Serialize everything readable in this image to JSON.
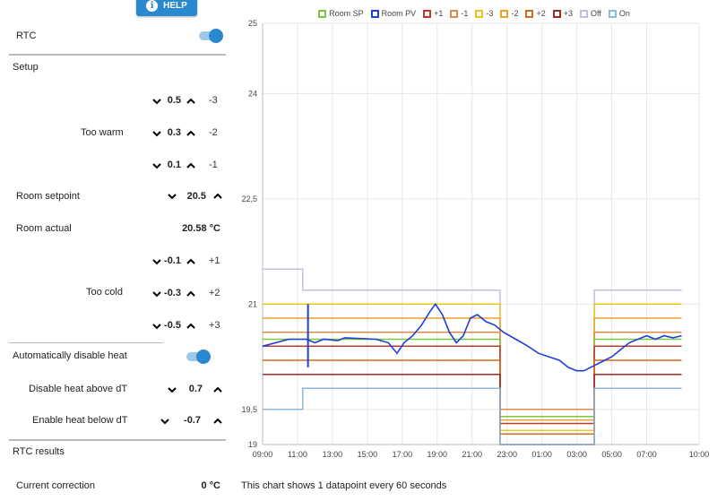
{
  "help": {
    "label": "HELP",
    "icon": "info-icon"
  },
  "rtc": {
    "label": "RTC",
    "enabled": true
  },
  "setup": {
    "heading": "Setup",
    "too_warm": {
      "label": "Too warm",
      "rows": [
        {
          "value": "0.5",
          "side": "-3"
        },
        {
          "value": "0.3",
          "side": "-2"
        },
        {
          "value": "0.1",
          "side": "-1"
        }
      ]
    },
    "room_setpoint": {
      "label": "Room setpoint",
      "value": "20.5"
    },
    "room_actual": {
      "label": "Room actual",
      "value": "20.58 °C"
    },
    "too_cold": {
      "label": "Too cold",
      "rows": [
        {
          "value": "-0.1",
          "side": "+1"
        },
        {
          "value": "-0.3",
          "side": "+2"
        },
        {
          "value": "-0.5",
          "side": "+3"
        }
      ]
    }
  },
  "auto_disable": {
    "label": "Automatically disable heat",
    "enabled": true
  },
  "disable_above": {
    "label": "Disable heat above dT",
    "value": "0.7"
  },
  "enable_below": {
    "label": "Enable heat below dT",
    "value": "-0.7"
  },
  "results": {
    "heading": "RTC results",
    "current_correction_label": "Current correction",
    "current_correction_value": "0 °C"
  },
  "footnote": "This chart shows 1 datapoint every 60 seconds",
  "chart_data": {
    "type": "line",
    "legend": [
      {
        "name": "Room SP",
        "color": "#7ac943"
      },
      {
        "name": "Room PV",
        "color": "#1f3fd6"
      },
      {
        "name": "+1",
        "color": "#c0392b"
      },
      {
        "name": "-1",
        "color": "#e08a4a"
      },
      {
        "name": "-3",
        "color": "#f0c419"
      },
      {
        "name": "-2",
        "color": "#f0a030"
      },
      {
        "name": "+2",
        "color": "#d46a1e"
      },
      {
        "name": "+3",
        "color": "#9e2a2a"
      },
      {
        "name": "Off",
        "color": "#c8bde0"
      },
      {
        "name": "On",
        "color": "#8fb8d8"
      }
    ],
    "y_ticks": [
      {
        "v": 25,
        "label": "25"
      },
      {
        "v": 24,
        "label": "24"
      },
      {
        "v": 22.5,
        "label": "22,5"
      },
      {
        "v": 21,
        "label": "21"
      },
      {
        "v": 19.5,
        "label": "19,5"
      },
      {
        "v": 19,
        "label": "19"
      }
    ],
    "ylim": [
      19,
      25
    ],
    "x_ticks": [
      "09:00",
      "11:00",
      "13:00",
      "15:00",
      "17:00",
      "19:00",
      "21:00",
      "23:00",
      "01:00",
      "03:00",
      "05:00",
      "07:00",
      "10:00"
    ],
    "x_tick_hours": [
      0,
      2,
      4,
      6,
      8,
      10,
      12,
      14,
      16,
      18,
      20,
      22,
      25
    ],
    "xlim_hours": [
      0,
      25
    ],
    "heat_off_window_hours": [
      13.6,
      19.0
    ],
    "levels_on": [
      {
        "name": "Off",
        "v": 21.2,
        "off_v": 19.0
      },
      {
        "name": "-3",
        "v": 21.0
      },
      {
        "name": "-2",
        "v": 20.8
      },
      {
        "name": "-1",
        "v": 20.6
      },
      {
        "name": "Room SP",
        "v": 20.5
      },
      {
        "name": "+1",
        "v": 20.4
      },
      {
        "name": "+2",
        "v": 20.2
      },
      {
        "name": "+3",
        "v": 20.0
      },
      {
        "name": "On",
        "v": 19.8,
        "off_v": 19.0
      }
    ],
    "pv_series": [
      [
        0,
        20.4
      ],
      [
        1.5,
        20.5
      ],
      [
        2.2,
        20.5
      ],
      [
        2.5,
        20.5
      ],
      [
        3.0,
        20.45
      ],
      [
        3.5,
        20.5
      ],
      [
        4.3,
        20.48
      ],
      [
        4.7,
        20.52
      ],
      [
        6.5,
        20.5
      ],
      [
        7.2,
        20.45
      ],
      [
        7.7,
        20.3
      ],
      [
        8.1,
        20.45
      ],
      [
        8.6,
        20.55
      ],
      [
        9.1,
        20.7
      ],
      [
        9.6,
        20.9
      ],
      [
        9.9,
        21.0
      ],
      [
        10.3,
        20.85
      ],
      [
        10.7,
        20.6
      ],
      [
        11.1,
        20.45
      ],
      [
        11.5,
        20.55
      ],
      [
        11.9,
        20.8
      ],
      [
        12.3,
        20.85
      ],
      [
        12.8,
        20.75
      ],
      [
        13.3,
        20.7
      ],
      [
        13.8,
        20.6
      ],
      [
        14.5,
        20.5
      ],
      [
        15.2,
        20.4
      ],
      [
        15.8,
        20.3
      ],
      [
        16.4,
        20.25
      ],
      [
        17.0,
        20.2
      ],
      [
        17.5,
        20.1
      ],
      [
        18.0,
        20.05
      ],
      [
        18.4,
        20.05
      ],
      [
        18.8,
        20.1
      ],
      [
        19.2,
        20.15
      ],
      [
        19.6,
        20.2
      ],
      [
        20.0,
        20.25
      ],
      [
        20.5,
        20.35
      ],
      [
        21.0,
        20.45
      ],
      [
        21.5,
        20.5
      ],
      [
        22.0,
        20.55
      ],
      [
        22.5,
        20.5
      ],
      [
        23.0,
        20.55
      ],
      [
        23.5,
        20.52
      ],
      [
        24.0,
        20.55
      ]
    ]
  }
}
